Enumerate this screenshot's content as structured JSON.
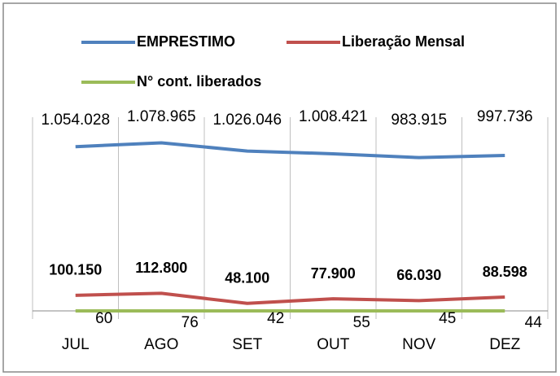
{
  "chart_data": {
    "type": "line",
    "categories": [
      "JUL",
      "AGO",
      "SET",
      "OUT",
      "NOV",
      "DEZ"
    ],
    "series": [
      {
        "name": "EMPRESTIMO",
        "color": "#4f81bd",
        "values": [
          1054028,
          1078965,
          1026046,
          1008421,
          983915,
          997736
        ],
        "value_labels": [
          "1.054.028",
          "1.078.965",
          "1.026.046",
          "1.008.421",
          "983.915",
          "997.736"
        ]
      },
      {
        "name": "Liberação Mensal",
        "color": "#c0504d",
        "values": [
          100150,
          112800,
          48100,
          77900,
          66030,
          88598
        ],
        "value_labels": [
          "100.150",
          "112.800",
          "48.100",
          "77.900",
          "66.030",
          "88.598"
        ]
      },
      {
        "name": "N° cont. liberados",
        "color": "#9bbb59",
        "values": [
          60,
          76,
          42,
          55,
          45,
          44
        ]
      }
    ],
    "ylim": [
      0,
      1400000
    ],
    "legend": "top"
  }
}
